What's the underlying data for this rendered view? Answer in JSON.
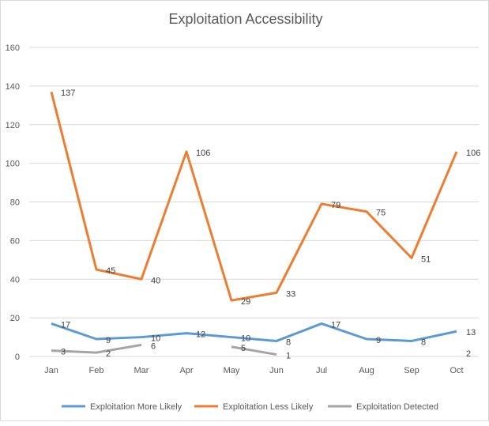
{
  "chart_data": {
    "type": "line",
    "title": "Exploitation Accessibility",
    "categories": [
      "Jan",
      "Feb",
      "Mar",
      "Apr",
      "May",
      "Jun",
      "Jul",
      "Aug",
      "Sep",
      "Oct"
    ],
    "ylim": [
      0,
      160
    ],
    "yticks": [
      0,
      20,
      40,
      60,
      80,
      100,
      120,
      140,
      160
    ],
    "grid": true,
    "legend": "bottom",
    "series": [
      {
        "name": "Exploitation More Likely",
        "color": "#5b9bd5",
        "values": [
          17,
          9,
          10,
          12,
          10,
          8,
          17,
          9,
          8,
          13
        ]
      },
      {
        "name": "Exploitation Less Likely",
        "color": "#ed7d31",
        "values": [
          137,
          45,
          40,
          106,
          29,
          33,
          79,
          75,
          51,
          106
        ]
      },
      {
        "name": "Exploitation Detected",
        "color": "#a5a5a5",
        "values": [
          3,
          2,
          6,
          null,
          5,
          1,
          null,
          null,
          null,
          2
        ]
      }
    ]
  }
}
